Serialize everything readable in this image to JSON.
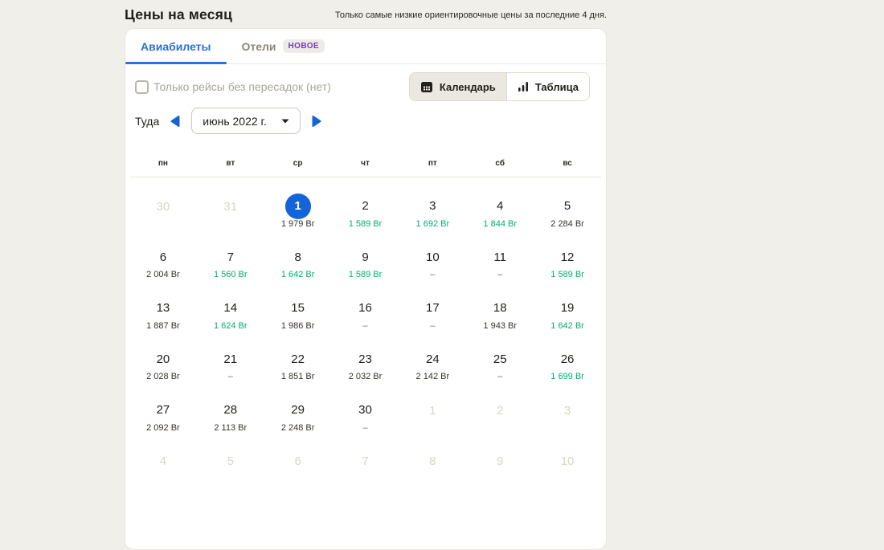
{
  "header": {
    "title": "Цены на месяц",
    "subtitle": "Только самые низкие ориентировочные цены за последние 4 дня."
  },
  "tabs": [
    {
      "label": "Авиабилеты",
      "active": true
    },
    {
      "label": "Отели",
      "active": false,
      "badge": "НОВОЕ"
    }
  ],
  "filters": {
    "direct_only": {
      "label": "Только рейсы без пересадок (нет)",
      "checked": false
    }
  },
  "view_toggle": {
    "options": [
      {
        "label": "Календарь",
        "icon": "calendar-icon",
        "active": true
      },
      {
        "label": "Таблица",
        "icon": "bar-chart-icon",
        "active": false
      }
    ]
  },
  "month_nav": {
    "direction_label": "Туда",
    "month_select_value": "июнь 2022 г."
  },
  "calendar": {
    "weekday_headers": [
      "пн",
      "вт",
      "ср",
      "чт",
      "пт",
      "сб",
      "вс"
    ],
    "currency": "Br",
    "weeks": [
      [
        {
          "day": "30",
          "outside": true
        },
        {
          "day": "31",
          "outside": true
        },
        {
          "day": "1",
          "selected": true,
          "price": "1 979 Br"
        },
        {
          "day": "2",
          "price": "1 589 Br",
          "cheap": true
        },
        {
          "day": "3",
          "price": "1 692 Br",
          "cheap": true
        },
        {
          "day": "4",
          "price": "1 844 Br",
          "cheap": true
        },
        {
          "day": "5",
          "price": "2 284 Br"
        }
      ],
      [
        {
          "day": "6",
          "price": "2 004 Br"
        },
        {
          "day": "7",
          "price": "1 560 Br",
          "cheap": true
        },
        {
          "day": "8",
          "price": "1 642 Br",
          "cheap": true
        },
        {
          "day": "9",
          "price": "1 589 Br",
          "cheap": true
        },
        {
          "day": "10",
          "price": "–",
          "no_price": true
        },
        {
          "day": "11",
          "price": "–",
          "no_price": true
        },
        {
          "day": "12",
          "price": "1 589 Br",
          "cheap": true
        }
      ],
      [
        {
          "day": "13",
          "price": "1 887 Br"
        },
        {
          "day": "14",
          "price": "1 624 Br",
          "cheap": true
        },
        {
          "day": "15",
          "price": "1 986 Br"
        },
        {
          "day": "16",
          "price": "–",
          "no_price": true
        },
        {
          "day": "17",
          "price": "–",
          "no_price": true
        },
        {
          "day": "18",
          "price": "1 943 Br"
        },
        {
          "day": "19",
          "price": "1 642 Br",
          "cheap": true
        }
      ],
      [
        {
          "day": "20",
          "price": "2 028 Br"
        },
        {
          "day": "21",
          "price": "–",
          "no_price": true
        },
        {
          "day": "22",
          "price": "1 851 Br"
        },
        {
          "day": "23",
          "price": "2 032 Br"
        },
        {
          "day": "24",
          "price": "2 142 Br"
        },
        {
          "day": "25",
          "price": "–",
          "no_price": true
        },
        {
          "day": "26",
          "price": "1 699 Br",
          "cheap": true
        }
      ],
      [
        {
          "day": "27",
          "price": "2 092 Br"
        },
        {
          "day": "28",
          "price": "2 113 Br"
        },
        {
          "day": "29",
          "price": "2 248 Br"
        },
        {
          "day": "30",
          "price": "–",
          "no_price": true
        },
        {
          "day": "1",
          "outside": true
        },
        {
          "day": "2",
          "outside": true
        },
        {
          "day": "3",
          "outside": true
        }
      ],
      [
        {
          "day": "4",
          "outside": true
        },
        {
          "day": "5",
          "outside": true
        },
        {
          "day": "6",
          "outside": true
        },
        {
          "day": "7",
          "outside": true
        },
        {
          "day": "8",
          "outside": true
        },
        {
          "day": "9",
          "outside": true
        },
        {
          "day": "10",
          "outside": true
        }
      ]
    ]
  },
  "colors": {
    "accent_blue": "#1264d8",
    "tab_blue": "#2e6fd8",
    "cheap_price_green": "#00af6c",
    "new_badge_purple": "#7b3bb3",
    "page_background": "#f0efe9"
  }
}
